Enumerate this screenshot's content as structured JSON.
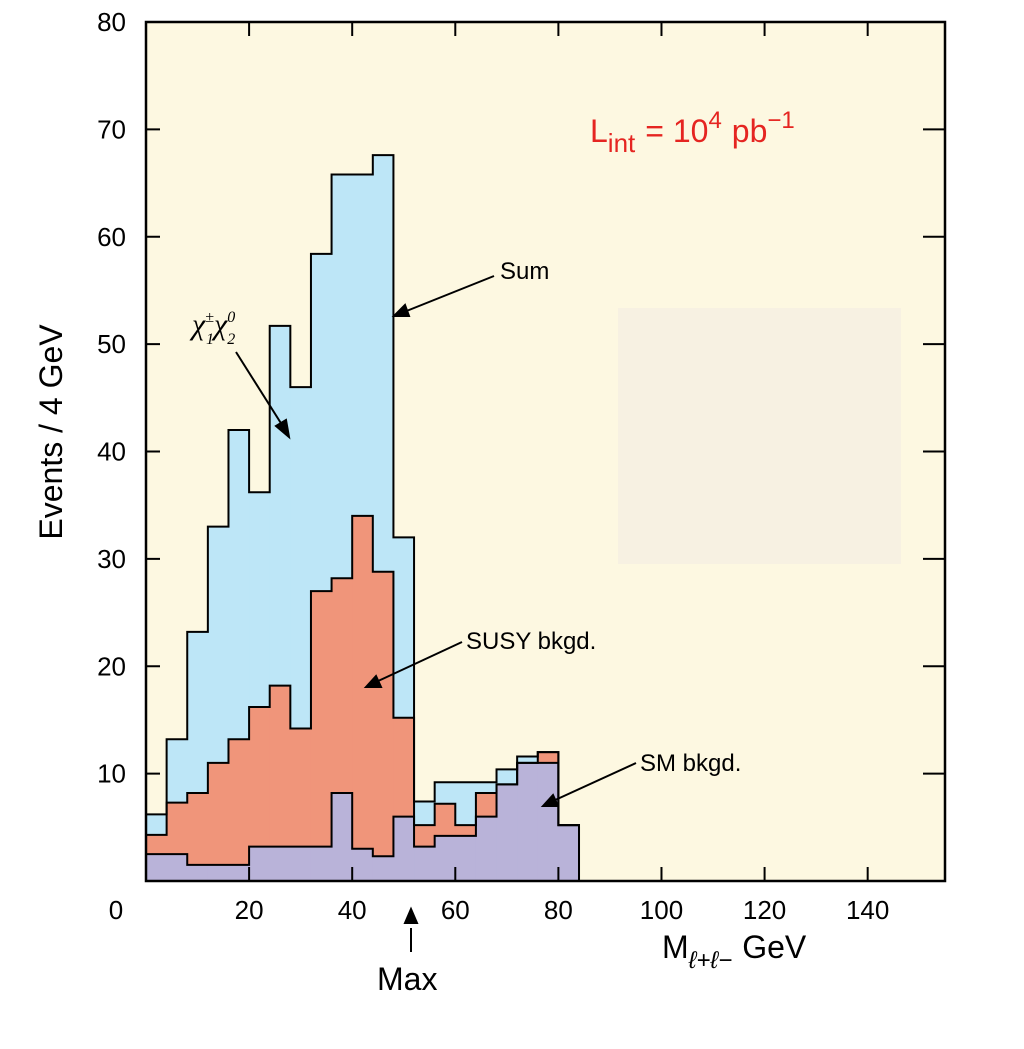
{
  "chart_data": {
    "type": "area",
    "title": "",
    "xlabel": "M",
    "xlabel_subscript": "ℓ+ℓ−",
    "xlabel_unit": "GeV",
    "ylabel": "Events / 4 GeV",
    "xlim": [
      0,
      155
    ],
    "ylim": [
      0,
      80
    ],
    "x_ticks": [
      20,
      40,
      60,
      80,
      100,
      120,
      140
    ],
    "y_ticks": [
      10,
      20,
      30,
      40,
      50,
      60,
      70,
      80
    ],
    "origin_label": "0",
    "grid": false,
    "bin_edges": [
      0,
      4,
      8,
      12,
      16,
      20,
      24,
      28,
      32,
      36,
      40,
      44,
      48,
      52,
      56,
      60,
      64,
      68,
      72,
      76,
      80,
      84
    ],
    "series": [
      {
        "name": "SM bkgd.",
        "color": "#b9b3d9",
        "values": [
          2.5,
          2.5,
          1.5,
          1.5,
          1.5,
          3.2,
          3.2,
          3.2,
          3.2,
          8.2,
          3.0,
          2.3,
          6.0,
          3.2,
          4.2,
          4.2,
          6.0,
          9.0,
          11.0,
          11.0,
          5.2
        ]
      },
      {
        "name": "SUSY bkgd.",
        "color": "#f0957a",
        "values": [
          4.3,
          7.3,
          8.2,
          11.0,
          13.2,
          16.2,
          18.2,
          14.2,
          27.0,
          28.2,
          34.0,
          28.8,
          15.2,
          5.2,
          7.2,
          5.2,
          8.2,
          9.0,
          11.0,
          12.0,
          5.2
        ]
      },
      {
        "name": "Sum",
        "color": "#bde6f7",
        "values": [
          6.2,
          13.2,
          23.2,
          33.0,
          42.0,
          36.2,
          51.7,
          46.0,
          58.4,
          65.8,
          65.8,
          67.6,
          32.0,
          7.4,
          9.2,
          9.2,
          9.2,
          10.4,
          11.6,
          12.0,
          5.2
        ]
      }
    ],
    "annotations": {
      "chi_label": "χ",
      "chi_sup1": "±",
      "chi_sub1": "1",
      "chi_sup2": "0",
      "chi_sub2": "2",
      "sum_label": "Sum",
      "susy_label": "SUSY bkgd.",
      "sm_label": "SM bkgd.",
      "max_label": "Max",
      "max_x": 51.5,
      "lumi_L": "L",
      "lumi_sub": "int",
      "lumi_eq": "= 10",
      "lumi_exp": "4",
      "lumi_unit": "pb",
      "lumi_exp2": "−1"
    },
    "colors": {
      "plot_bg": "#fdf8e1",
      "inset_box": "#f7f1e2",
      "lumi_text": "#e52521"
    }
  }
}
